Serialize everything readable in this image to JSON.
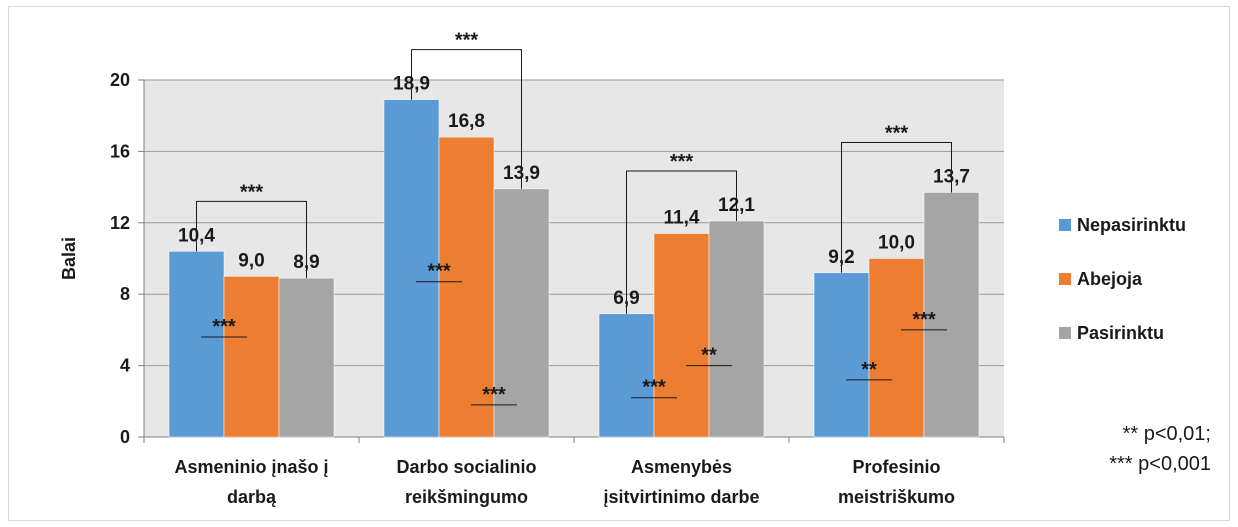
{
  "chart_data": {
    "type": "bar",
    "ylabel": "Balai",
    "ylim": [
      0,
      20
    ],
    "yticks": [
      0,
      4,
      8,
      12,
      16,
      20
    ],
    "grid": true,
    "legend_position": "right",
    "categories": [
      [
        "Asmeninio įnašo į",
        "darbą"
      ],
      [
        "Darbo socialinio",
        "reikšmingumo"
      ],
      [
        "Asmenybės",
        "įsitvirtinimo darbe"
      ],
      [
        "Profesinio",
        "meistriškumo"
      ]
    ],
    "series": [
      {
        "name": "Nepasirinktu",
        "color": "#5b9bd5",
        "values": [
          10.4,
          18.9,
          6.9,
          9.2
        ],
        "labels": [
          "10,4",
          "18,9",
          "6,9",
          "9,2"
        ]
      },
      {
        "name": "Abejoja",
        "color": "#ed7d31",
        "values": [
          9.0,
          16.8,
          11.4,
          10.0
        ],
        "labels": [
          "9,0",
          "16,8",
          "11,4",
          "10,0"
        ]
      },
      {
        "name": "Pasirinktu",
        "color": "#a5a5a5",
        "values": [
          8.9,
          13.9,
          12.1,
          13.7
        ],
        "labels": [
          "8,9",
          "13,9",
          "12,1",
          "13,7"
        ]
      }
    ],
    "significance_brackets": [
      {
        "category": 0,
        "from_series": 0,
        "to_series": 2,
        "label": "***"
      },
      {
        "category": 1,
        "from_series": 0,
        "to_series": 2,
        "label": "***"
      },
      {
        "category": 2,
        "from_series": 0,
        "to_series": 2,
        "label": "***"
      },
      {
        "category": 3,
        "from_series": 0,
        "to_series": 2,
        "label": "***"
      }
    ],
    "inner_significance_marks": [
      {
        "category": 0,
        "series": 0,
        "label": "***",
        "at_value": 5.6
      },
      {
        "category": 1,
        "series": 0,
        "label": "***",
        "at_value": 8.7
      },
      {
        "category": 1,
        "series": 1,
        "label": "***",
        "at_value": 1.8
      },
      {
        "category": 2,
        "series": 0,
        "label": "***",
        "at_value": 2.2
      },
      {
        "category": 2,
        "series": 1,
        "label": "**",
        "at_value": 4.0
      },
      {
        "category": 3,
        "series": 0,
        "label": "**",
        "at_value": 3.2
      },
      {
        "category": 3,
        "series": 1,
        "label": "***",
        "at_value": 6.0
      }
    ],
    "notes": [
      "** p<0,01;",
      "*** p<0,001"
    ]
  }
}
